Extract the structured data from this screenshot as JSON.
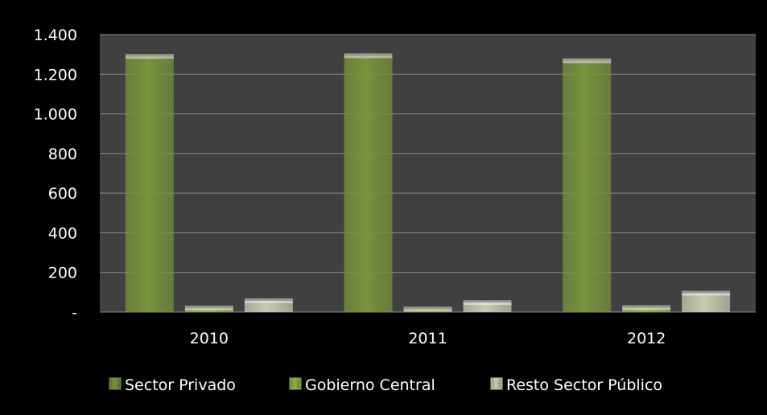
{
  "chart_data": {
    "type": "bar",
    "categories": [
      "2010",
      "2011",
      "2012"
    ],
    "series": [
      {
        "name": "Sector Privado",
        "values": [
          1290,
          1293,
          1268
        ],
        "color": "#77933c"
      },
      {
        "name": "Gobierno Central",
        "values": [
          20,
          15,
          22
        ],
        "color": "#8db43f"
      },
      {
        "name": "Resto Sector Público",
        "values": [
          57,
          48,
          95
        ],
        "color": "#c3ccb0"
      }
    ],
    "ylim": [
      0,
      1400
    ],
    "yticks": [
      0,
      200,
      400,
      600,
      800,
      1000,
      1200,
      1400
    ],
    "ytick_labels": [
      "-",
      "200",
      "400",
      "600",
      "800",
      "1.000",
      "1.200",
      "1.400"
    ],
    "grid": true,
    "legend": "bottom",
    "plot_background": "#404040",
    "background": "#000000"
  }
}
